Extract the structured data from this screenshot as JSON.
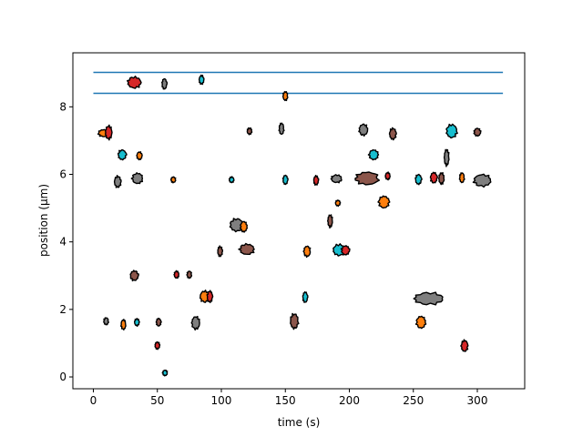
{
  "chart_data": {
    "type": "scatter",
    "title": "",
    "xlabel": "time (s)",
    "ylabel": "position (µm)",
    "xlim": [
      -16,
      337
    ],
    "ylim": [
      -0.35,
      9.6
    ],
    "xticks": [
      0,
      50,
      100,
      150,
      200,
      250,
      300
    ],
    "yticks": [
      0,
      2,
      4,
      6,
      8
    ],
    "grid": false,
    "legend": "none",
    "hlines": [
      {
        "y": 9.02,
        "x0": 0,
        "x1": 320,
        "color": "#1f77b4"
      },
      {
        "y": 8.4,
        "x0": 0,
        "x1": 320,
        "color": "#1f77b4"
      }
    ],
    "blobs": [
      {
        "x": 32,
        "y": 8.72,
        "w": 10,
        "h": 0.32,
        "color": "#d62728"
      },
      {
        "x": 55.5,
        "y": 8.68,
        "w": 3,
        "h": 0.3,
        "color": "#7f7f7f"
      },
      {
        "x": 84.5,
        "y": 8.8,
        "w": 3,
        "h": 0.25,
        "color": "#17becf"
      },
      {
        "x": 150,
        "y": 8.32,
        "w": 2.5,
        "h": 0.25,
        "color": "#ff7f0e"
      },
      {
        "x": 8,
        "y": 7.22,
        "w": 8,
        "h": 0.2,
        "color": "#ff7f0e"
      },
      {
        "x": 12,
        "y": 7.24,
        "w": 5,
        "h": 0.38,
        "color": "#d62728"
      },
      {
        "x": 22.5,
        "y": 6.58,
        "w": 6,
        "h": 0.28,
        "color": "#17becf"
      },
      {
        "x": 36,
        "y": 6.55,
        "w": 4,
        "h": 0.22,
        "color": "#ff7f0e"
      },
      {
        "x": 122,
        "y": 7.28,
        "w": 3,
        "h": 0.18,
        "color": "#8c564b"
      },
      {
        "x": 147,
        "y": 7.35,
        "w": 3.5,
        "h": 0.32,
        "color": "#7f7f7f"
      },
      {
        "x": 211,
        "y": 7.32,
        "w": 6.5,
        "h": 0.32,
        "color": "#7f7f7f"
      },
      {
        "x": 234,
        "y": 7.2,
        "w": 5,
        "h": 0.32,
        "color": "#8c564b"
      },
      {
        "x": 219,
        "y": 6.58,
        "w": 7,
        "h": 0.28,
        "color": "#17becf"
      },
      {
        "x": 276,
        "y": 6.5,
        "w": 2,
        "h": 0.45,
        "color": "#7f7f7f"
      },
      {
        "x": 280,
        "y": 7.28,
        "w": 8,
        "h": 0.38,
        "color": "#17becf"
      },
      {
        "x": 300,
        "y": 7.25,
        "w": 5,
        "h": 0.22,
        "color": "#8c564b"
      },
      {
        "x": 19,
        "y": 5.78,
        "w": 5,
        "h": 0.32,
        "color": "#7f7f7f"
      },
      {
        "x": 34.5,
        "y": 5.88,
        "w": 8,
        "h": 0.3,
        "color": "#7f7f7f"
      },
      {
        "x": 62.5,
        "y": 5.84,
        "w": 3,
        "h": 0.16,
        "color": "#ff7f0e"
      },
      {
        "x": 108,
        "y": 5.84,
        "w": 3.5,
        "h": 0.16,
        "color": "#17becf"
      },
      {
        "x": 150,
        "y": 5.84,
        "w": 3.5,
        "h": 0.26,
        "color": "#17becf"
      },
      {
        "x": 174,
        "y": 5.82,
        "w": 3,
        "h": 0.26,
        "color": "#d62728"
      },
      {
        "x": 190,
        "y": 5.87,
        "w": 8,
        "h": 0.22,
        "color": "#7f7f7f"
      },
      {
        "x": 214,
        "y": 5.88,
        "w": 18,
        "h": 0.36,
        "color": "#8c564b"
      },
      {
        "x": 230,
        "y": 5.95,
        "w": 2.5,
        "h": 0.2,
        "color": "#d62728"
      },
      {
        "x": 254,
        "y": 5.85,
        "w": 4.5,
        "h": 0.28,
        "color": "#17becf"
      },
      {
        "x": 266,
        "y": 5.9,
        "w": 5,
        "h": 0.3,
        "color": "#d62728"
      },
      {
        "x": 272,
        "y": 5.88,
        "w": 4,
        "h": 0.32,
        "color": "#8c564b"
      },
      {
        "x": 288,
        "y": 5.9,
        "w": 3.5,
        "h": 0.28,
        "color": "#ff7f0e"
      },
      {
        "x": 304,
        "y": 5.82,
        "w": 13,
        "h": 0.34,
        "color": "#7f7f7f"
      },
      {
        "x": 191,
        "y": 5.15,
        "w": 2.5,
        "h": 0.16,
        "color": "#ff7f0e"
      },
      {
        "x": 227,
        "y": 5.18,
        "w": 8,
        "h": 0.34,
        "color": "#ff7f0e"
      },
      {
        "x": 185,
        "y": 4.62,
        "w": 2,
        "h": 0.35,
        "color": "#8c564b"
      },
      {
        "x": 112,
        "y": 4.5,
        "w": 10,
        "h": 0.36,
        "color": "#7f7f7f"
      },
      {
        "x": 117.5,
        "y": 4.45,
        "w": 5,
        "h": 0.3,
        "color": "#ff7f0e"
      },
      {
        "x": 99,
        "y": 3.72,
        "w": 3,
        "h": 0.28,
        "color": "#8c564b"
      },
      {
        "x": 120,
        "y": 3.78,
        "w": 11,
        "h": 0.3,
        "color": "#8c564b"
      },
      {
        "x": 167,
        "y": 3.72,
        "w": 5,
        "h": 0.3,
        "color": "#ff7f0e"
      },
      {
        "x": 192,
        "y": 3.76,
        "w": 9,
        "h": 0.32,
        "color": "#17becf"
      },
      {
        "x": 197,
        "y": 3.75,
        "w": 6,
        "h": 0.26,
        "color": "#d62728"
      },
      {
        "x": 32,
        "y": 3.0,
        "w": 6,
        "h": 0.28,
        "color": "#8c564b"
      },
      {
        "x": 65,
        "y": 3.03,
        "w": 3,
        "h": 0.2,
        "color": "#d62728"
      },
      {
        "x": 75,
        "y": 3.03,
        "w": 3,
        "h": 0.2,
        "color": "#8c564b"
      },
      {
        "x": 87,
        "y": 2.38,
        "w": 7,
        "h": 0.32,
        "color": "#ff7f0e"
      },
      {
        "x": 91,
        "y": 2.38,
        "w": 4,
        "h": 0.32,
        "color": "#d62728"
      },
      {
        "x": 165.5,
        "y": 2.36,
        "w": 3,
        "h": 0.3,
        "color": "#17becf"
      },
      {
        "x": 262,
        "y": 2.32,
        "w": 22,
        "h": 0.34,
        "color": "#7f7f7f"
      },
      {
        "x": 10,
        "y": 1.65,
        "w": 3,
        "h": 0.2,
        "color": "#7f7f7f"
      },
      {
        "x": 23.5,
        "y": 1.55,
        "w": 3,
        "h": 0.28,
        "color": "#ff7f0e"
      },
      {
        "x": 34,
        "y": 1.62,
        "w": 3,
        "h": 0.2,
        "color": "#17becf"
      },
      {
        "x": 51,
        "y": 1.62,
        "w": 3.5,
        "h": 0.22,
        "color": "#8c564b"
      },
      {
        "x": 80,
        "y": 1.6,
        "w": 6,
        "h": 0.36,
        "color": "#7f7f7f"
      },
      {
        "x": 157,
        "y": 1.65,
        "w": 6,
        "h": 0.42,
        "color": "#8c564b"
      },
      {
        "x": 256,
        "y": 1.62,
        "w": 7,
        "h": 0.34,
        "color": "#ff7f0e"
      },
      {
        "x": 50,
        "y": 0.93,
        "w": 3,
        "h": 0.2,
        "color": "#d62728"
      },
      {
        "x": 290,
        "y": 0.92,
        "w": 5,
        "h": 0.32,
        "color": "#d62728"
      },
      {
        "x": 56,
        "y": 0.12,
        "w": 3,
        "h": 0.16,
        "color": "#17becf"
      }
    ]
  }
}
